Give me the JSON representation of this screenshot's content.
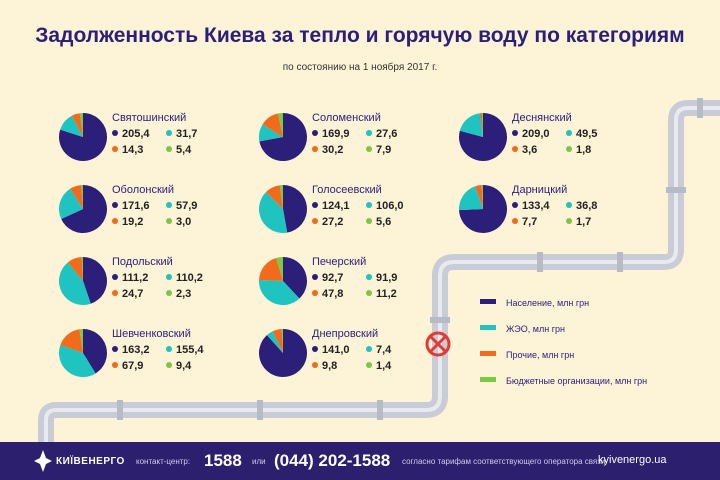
{
  "title": "Задолженность Киева за тепло и горячую воду по категориям",
  "subtitle": "по состоянию на 1 ноября 2017 г.",
  "colors": {
    "population": "#2b1f7a",
    "zheo": "#1fc4c0",
    "other": "#f26a1b",
    "budget": "#7ac943",
    "pipe": "#c9ccd6",
    "valve": "#e53935"
  },
  "legend": [
    {
      "label": "Население, млн грн",
      "color": "#2b1f7a"
    },
    {
      "label": "ЖЭО, млн грн",
      "color": "#1fc4c0"
    },
    {
      "label": "Прочие, млн грн",
      "color": "#f26a1b"
    },
    {
      "label": "Бюджетные организации, млн грн",
      "color": "#7ac943"
    }
  ],
  "chart_data": {
    "type": "pie",
    "title": "Задолженность Киева за тепло и горячую воду по категориям",
    "subtitle": "по состоянию на 1 ноября 2017 г.",
    "series_names": [
      "Население, млн грн",
      "ЖЭО, млн грн",
      "Прочие, млн грн",
      "Бюджетные организации, млн грн"
    ],
    "districts": [
      {
        "name": "Святошинский",
        "values": [
          "205,4",
          "31,7",
          "14,3",
          "5,4"
        ]
      },
      {
        "name": "Оболонский",
        "values": [
          "171,6",
          "57,9",
          "19,2",
          "3,0"
        ]
      },
      {
        "name": "Подольский",
        "values": [
          "111,2",
          "110,2",
          "24,7",
          "2,3"
        ]
      },
      {
        "name": "Шевченковский",
        "values": [
          "163,2",
          "155,4",
          "67,9",
          "9,4"
        ]
      },
      {
        "name": "Соломенский",
        "values": [
          "169,9",
          "27,6",
          "30,2",
          "7,9"
        ]
      },
      {
        "name": "Голосеевский",
        "values": [
          "124,1",
          "106,0",
          "27,2",
          "5,6"
        ]
      },
      {
        "name": "Печерский",
        "values": [
          "92,7",
          "91,9",
          "47,8",
          "11,2"
        ]
      },
      {
        "name": "Днепровский",
        "values": [
          "141,0",
          "7,4",
          "9,8",
          "1,4"
        ]
      },
      {
        "name": "Деснянский",
        "values": [
          "209,0",
          "49,5",
          "3,6",
          "1,8"
        ]
      },
      {
        "name": "Дарницкий",
        "values": [
          "133,4",
          "36,8",
          "7,7",
          "1,7"
        ]
      }
    ]
  },
  "footer": {
    "brand": "КИЇВЕНЕРГО",
    "contact_label": "контакт-центр:",
    "short_number": "1588",
    "or_text": "или",
    "long_number": "(044) 202-1588",
    "tariff_note": "согласно тарифам соответствующего оператора связи",
    "website": "kyivenergo.ua"
  }
}
